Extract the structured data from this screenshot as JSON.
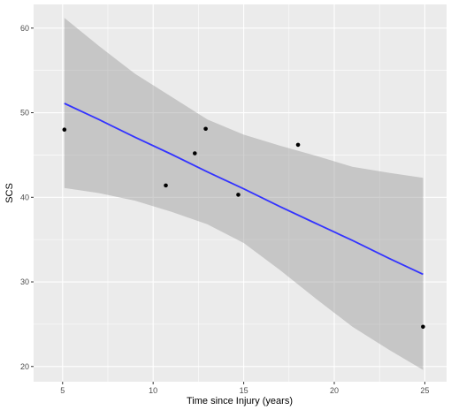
{
  "chart_data": {
    "type": "scatter",
    "xlabel": "Time since Injury (years)",
    "ylabel": "SCS",
    "xlim": [
      3.4,
      26.2
    ],
    "ylim": [
      18.2,
      62.8
    ],
    "x_ticks": [
      5,
      10,
      15,
      20,
      25
    ],
    "y_ticks": [
      20,
      30,
      40,
      50,
      60
    ],
    "grid": true,
    "points": [
      {
        "x": 5.1,
        "y": 48.0
      },
      {
        "x": 10.7,
        "y": 41.4
      },
      {
        "x": 12.3,
        "y": 45.2
      },
      {
        "x": 12.9,
        "y": 48.1
      },
      {
        "x": 14.7,
        "y": 40.3
      },
      {
        "x": 18.0,
        "y": 46.2
      },
      {
        "x": 24.9,
        "y": 24.7
      }
    ],
    "regression": {
      "method": "linear",
      "x": [
        5.1,
        7.0,
        9.0,
        11.0,
        13.0,
        15.0,
        17.0,
        19.0,
        21.0,
        23.0,
        24.9
      ],
      "fit": [
        51.1,
        49.2,
        47.1,
        45.1,
        43.0,
        41.0,
        38.9,
        36.9,
        34.9,
        32.8,
        30.9
      ],
      "lower": [
        41.1,
        40.5,
        39.6,
        38.3,
        36.8,
        34.6,
        31.4,
        28.0,
        24.7,
        22.0,
        19.6
      ],
      "upper": [
        61.2,
        57.9,
        54.6,
        51.9,
        49.2,
        47.4,
        46.1,
        44.9,
        43.6,
        42.9,
        42.3
      ]
    },
    "colors": {
      "panel": "#ebebeb",
      "grid_major": "#ffffff",
      "line": "#3333ff",
      "ribbon": "#999999",
      "point": "#000000"
    }
  }
}
